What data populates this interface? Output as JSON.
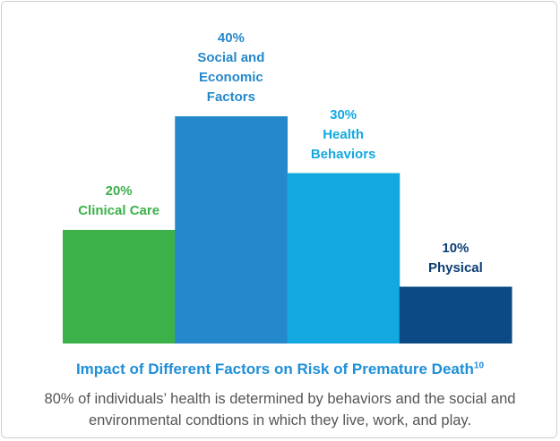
{
  "chart_data": {
    "type": "bar",
    "title": "Impact of Different Factors on Risk of Premature Death",
    "title_footnote": "10",
    "subtitle": "80% of individuals’ health is determined by behaviors and the social and environmental condtions in which they live, work, and play.",
    "categories": [
      "Clinical Care",
      "Social and Economic Factors",
      "Health Behaviors",
      "Physical"
    ],
    "values": [
      20,
      40,
      30,
      10
    ],
    "value_labels": [
      "20%",
      "40%",
      "30%",
      "10%"
    ],
    "colors": [
      "#3cb14a",
      "#2588cc",
      "#14a8e0",
      "#0c4a86"
    ],
    "label_colors": [
      "#3cb14a",
      "#2588cc",
      "#14a8e0",
      "#0c3d73"
    ]
  }
}
